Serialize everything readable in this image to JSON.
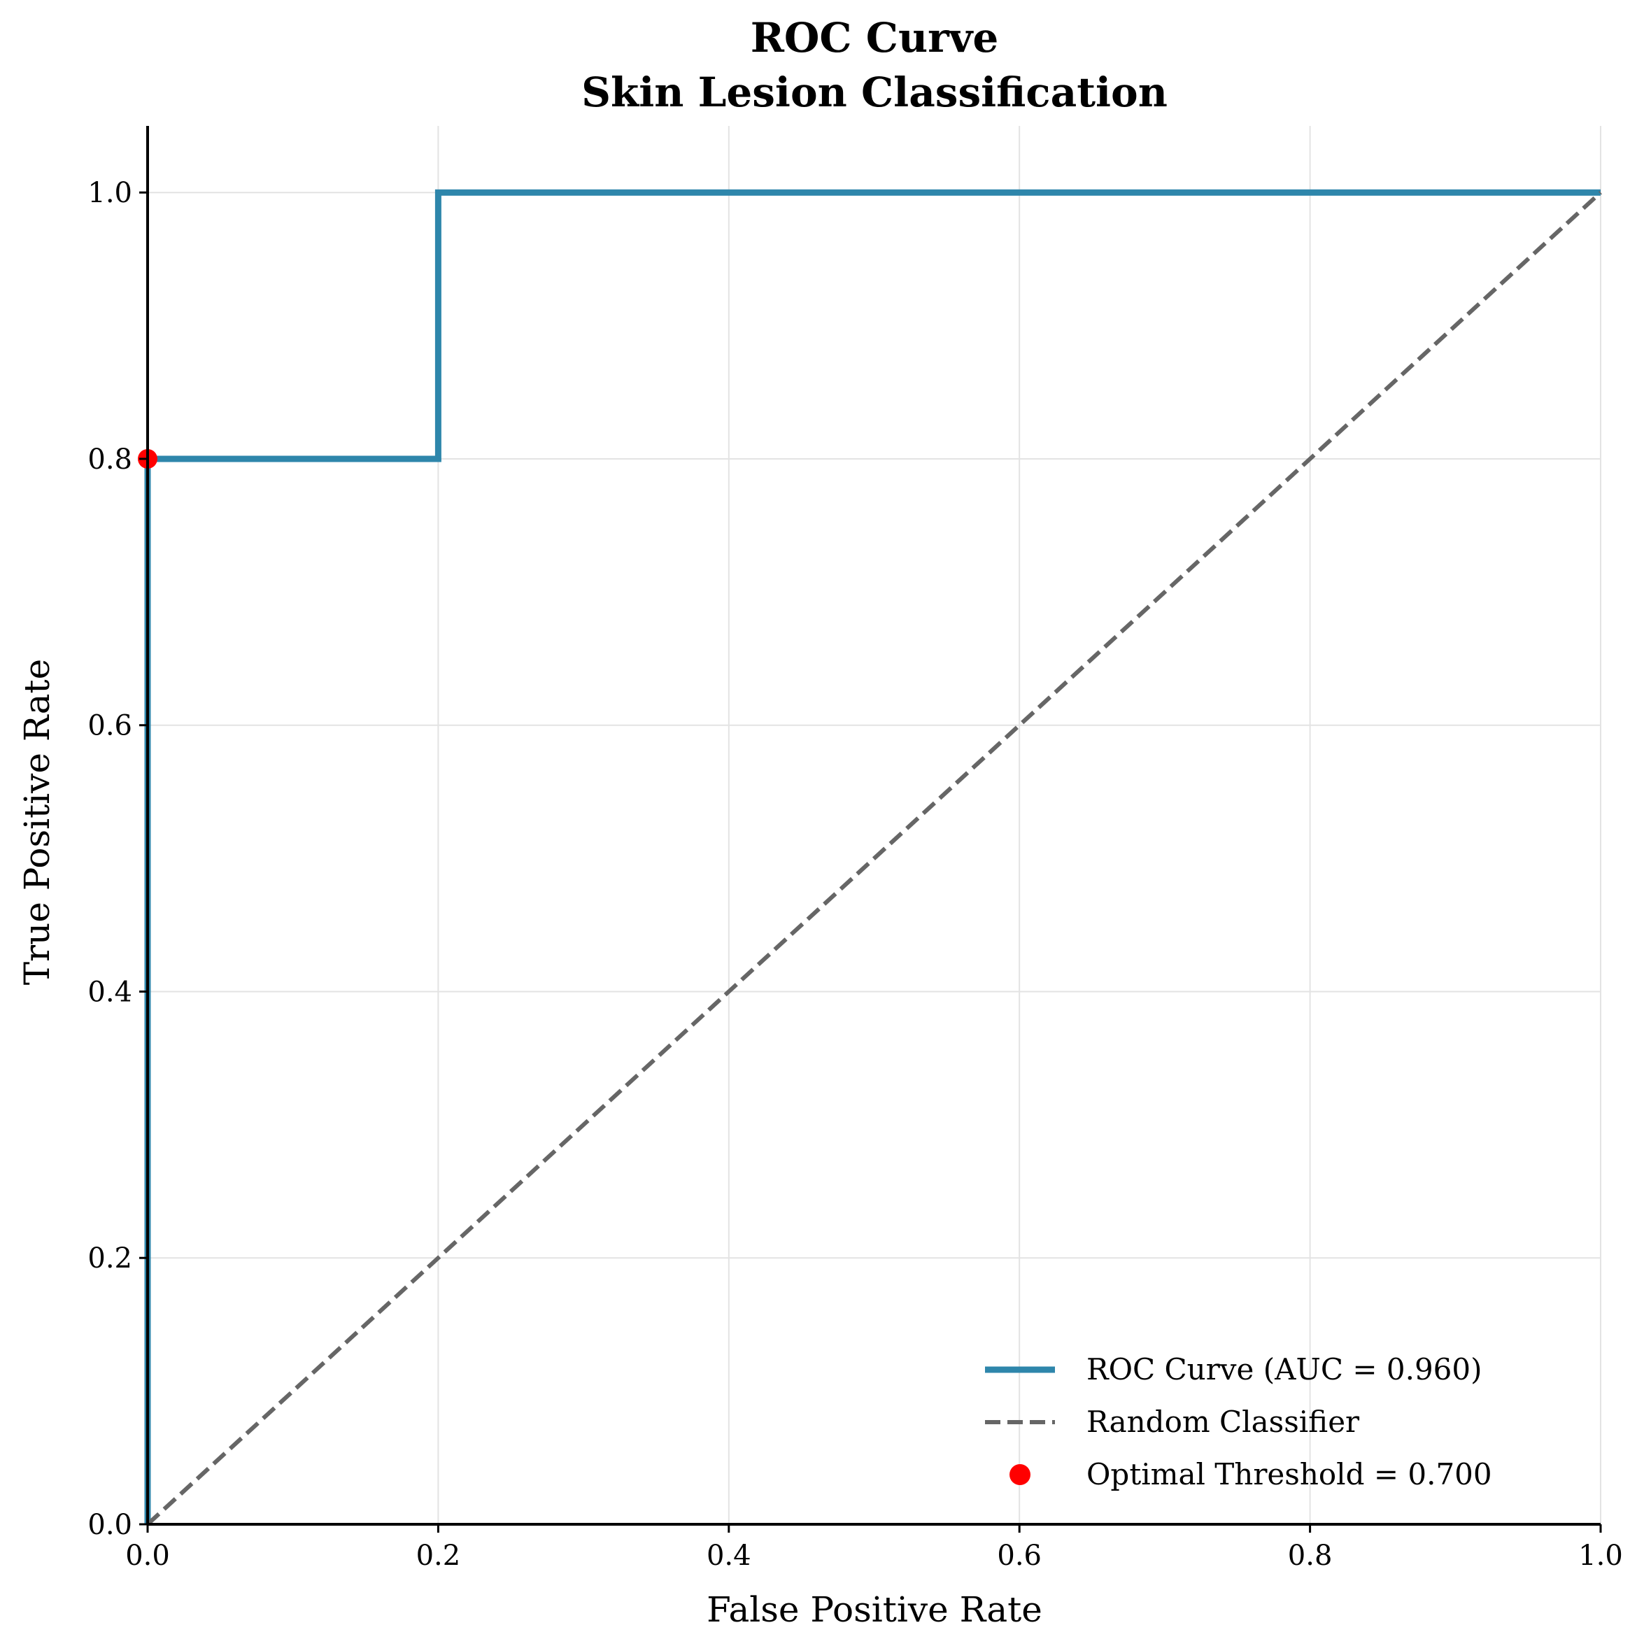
{
  "chart_data": {
    "type": "line",
    "title": "ROC Curve",
    "subtitle": "Skin Lesion Classification",
    "xlabel": "False Positive Rate",
    "ylabel": "True Positive Rate",
    "xlim": [
      0.0,
      1.0
    ],
    "ylim": [
      0.0,
      1.05
    ],
    "xticks": [
      "0.0",
      "0.2",
      "0.4",
      "0.6",
      "0.8",
      "1.0"
    ],
    "yticks": [
      "0.0",
      "0.2",
      "0.4",
      "0.6",
      "0.8",
      "1.0"
    ],
    "grid": true,
    "legend_position": "lower-right",
    "series": [
      {
        "name": "ROC Curve (AUC = 0.960)",
        "kind": "step-line",
        "color": "#2e86ab",
        "x": [
          0.0,
          0.0,
          0.2,
          0.2,
          1.0
        ],
        "y": [
          0.0,
          0.8,
          0.8,
          1.0,
          1.0
        ]
      },
      {
        "name": "Random Classifier",
        "kind": "dashed-line",
        "color": "#666666",
        "x": [
          0.0,
          1.0
        ],
        "y": [
          0.0,
          1.0
        ]
      },
      {
        "name": "Optimal Threshold = 0.700",
        "kind": "marker",
        "color": "#ff0000",
        "x": [
          0.0
        ],
        "y": [
          0.8
        ]
      }
    ]
  }
}
